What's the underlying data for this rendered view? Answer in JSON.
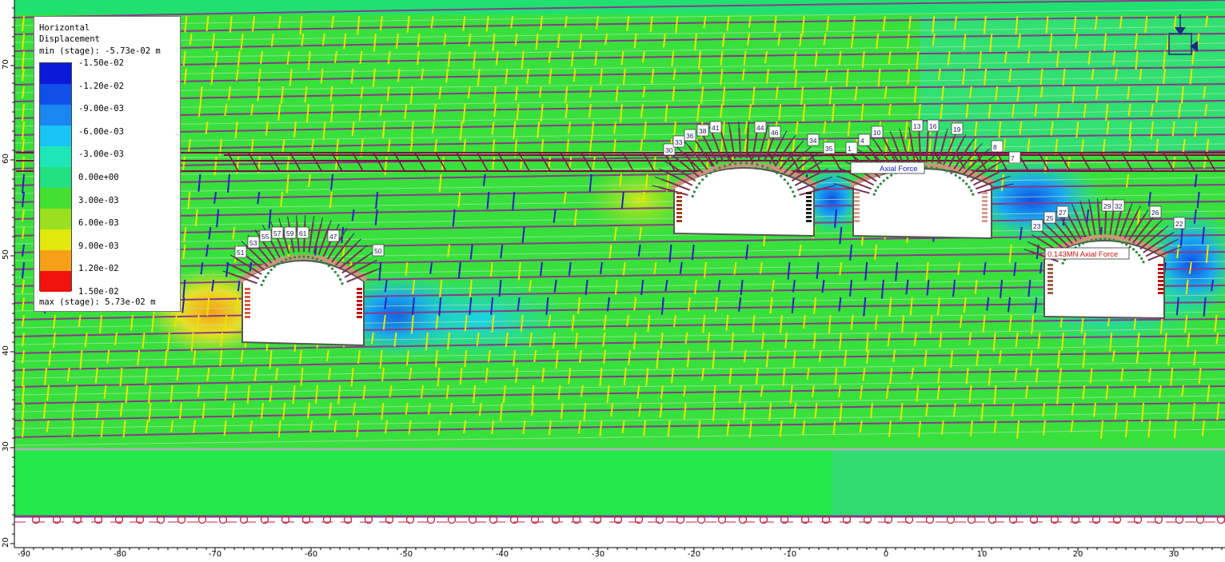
{
  "legend": {
    "title_line1": "Horizontal",
    "title_line2": "Displacement",
    "min": "min (stage): -5.73e-02 m",
    "max": "max (stage): 5.73e-02 m",
    "labels": [
      "-1.50e-02",
      "-1.20e-02",
      "-9.00e-03",
      "-6.00e-03",
      "-3.00e-03",
      "0.00e+00",
      "3.00e-03",
      "6.00e-03",
      "9.00e-03",
      "1.20e-02",
      "1.50e-02"
    ],
    "colors": [
      "#0a1ad8",
      "#1050e8",
      "#1a86f0",
      "#18c4f4",
      "#1ee6b8",
      "#22e080",
      "#44e030",
      "#9ae020",
      "#e0e80c",
      "#f6a018",
      "#f0140c"
    ]
  },
  "axes": {
    "x_ticks": [
      "-90",
      "-80",
      "-70",
      "-60",
      "-50",
      "-40",
      "-30",
      "-20",
      "-10",
      "0",
      "10",
      "20",
      "30"
    ],
    "y_ticks": [
      "70",
      "60",
      "50",
      "40",
      "30",
      "20"
    ]
  },
  "bolt_labels": {
    "tunnel1": [
      "51",
      "53",
      "55",
      "57",
      "59",
      "61",
      "47",
      "50"
    ],
    "tunnel2": [
      "30",
      "33",
      "36",
      "38",
      "41",
      "44",
      "46",
      "34",
      "35"
    ],
    "tunnel3": [
      "1",
      "4",
      "10",
      "13",
      "16",
      "19",
      "8",
      "7"
    ],
    "tunnel4": [
      "23",
      "25",
      "27",
      "29",
      "32",
      "26",
      "22"
    ]
  },
  "annotations": {
    "axial_force_blue": "Axial Force",
    "axial_force_red": "0.143MN Axial Force"
  },
  "colors": {
    "background_green": "#30e040",
    "joint_purple": "#8a3a8a",
    "beam_maroon": "#7a1040",
    "crack_yellow": "#e8e800",
    "crack_blue": "#2020c0"
  }
}
